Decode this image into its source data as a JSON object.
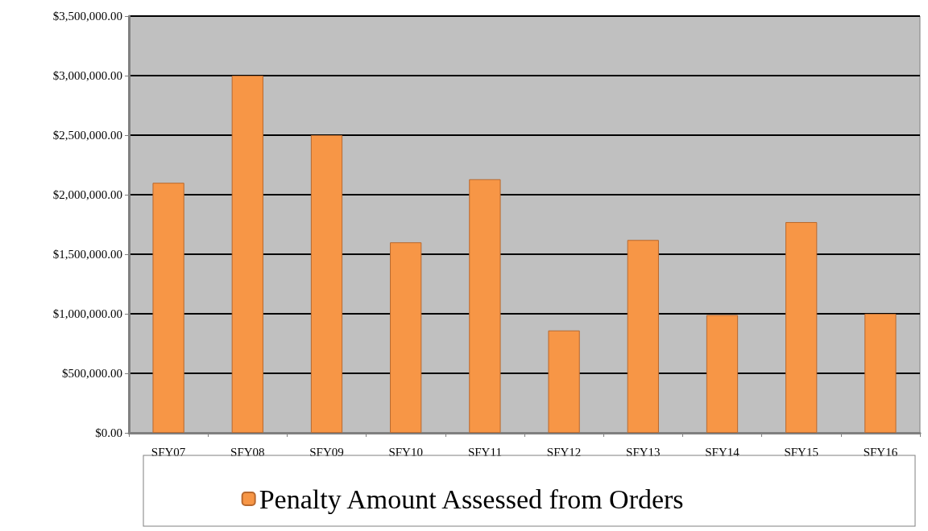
{
  "chart_data": {
    "type": "bar",
    "categories": [
      "SFY07",
      "SFY08",
      "SFY09",
      "SFY10",
      "SFY11",
      "SFY12",
      "SFY13",
      "SFY14",
      "SFY15",
      "SFY16"
    ],
    "series": [
      {
        "name": "Penalty Amount Assessed from Orders",
        "color": "#f79646",
        "values": [
          2100000,
          3000000,
          2500000,
          1600000,
          2130000,
          860000,
          1620000,
          990000,
          1770000,
          1000000
        ]
      }
    ],
    "ylim": [
      0,
      3500000
    ],
    "yticks": [
      {
        "value": 0,
        "label": "$0.00"
      },
      {
        "value": 500000,
        "label": "$500,000.00"
      },
      {
        "value": 1000000,
        "label": "$1,000,000.00"
      },
      {
        "value": 1500000,
        "label": "$1,500,000.00"
      },
      {
        "value": 2000000,
        "label": "$2,000,000.00"
      },
      {
        "value": 2500000,
        "label": "$2,500,000.00"
      },
      {
        "value": 3000000,
        "label": "$3,000,000.00"
      },
      {
        "value": 3500000,
        "label": "$3,500,000.00"
      }
    ],
    "grid": "y",
    "legend": "bottom"
  }
}
